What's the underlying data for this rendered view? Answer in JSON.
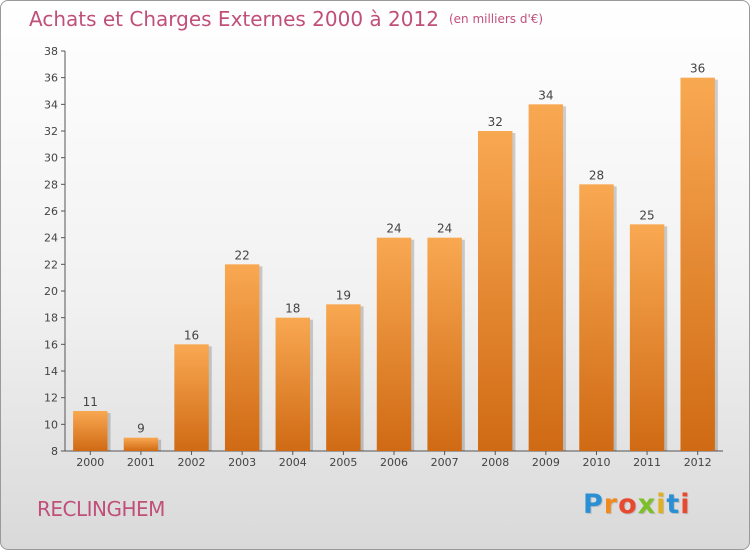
{
  "title": "Achats et Charges Externes 2000 à 2012",
  "subtitle": "(en milliers d'€)",
  "place_name": "RECLINGHEM",
  "logo": {
    "letters": [
      "P",
      "r",
      "o",
      "x",
      "i",
      "t",
      "i"
    ],
    "colors": [
      "#2b8fd6",
      "#f08a1c",
      "#e84a2f",
      "#7cbf2a",
      "#e0b020",
      "#2b8fd6",
      "#e84a2f"
    ]
  },
  "colors": {
    "bar_light": "#f9a852",
    "bar_dark": "#d06a14",
    "title": "#c0507a"
  },
  "chart_data": {
    "type": "bar",
    "title": "Achats et Charges Externes 2000 à 2012",
    "subtitle": "(en milliers d'€)",
    "categories": [
      "2000",
      "2001",
      "2002",
      "2003",
      "2004",
      "2005",
      "2006",
      "2007",
      "2008",
      "2009",
      "2010",
      "2011",
      "2012"
    ],
    "values": [
      11,
      9,
      16,
      22,
      18,
      19,
      24,
      24,
      32,
      34,
      28,
      25,
      36
    ],
    "ylim": [
      8,
      38
    ],
    "yticks": [
      8,
      10,
      12,
      14,
      16,
      18,
      20,
      22,
      24,
      26,
      28,
      30,
      32,
      34,
      36,
      38
    ],
    "grid": false,
    "data_labels": true
  }
}
